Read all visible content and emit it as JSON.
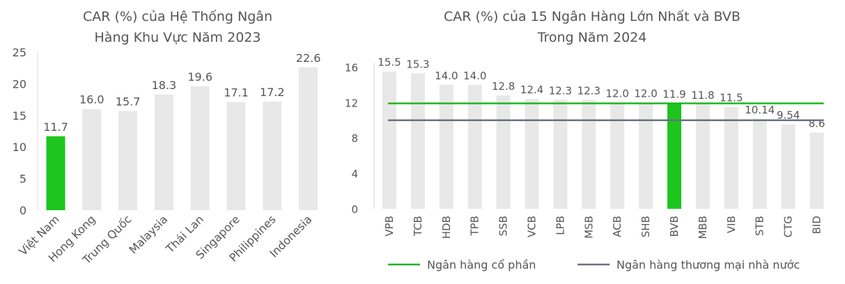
{
  "colors": {
    "bar": "#e8e8e8",
    "highlight": "#1ec51e",
    "axis": "#d9d9d9",
    "text": "#555555",
    "line_private": "#1eb51e",
    "line_state": "#6b6f82"
  },
  "chart_data": [
    {
      "type": "bar",
      "title": "CAR (%) của Hệ Thống Ngân Hàng Khu Vực Năm 2023",
      "title_lines": [
        "CAR (%) của Hệ Thống Ngân",
        "Hàng Khu Vực Năm 2023"
      ],
      "categories": [
        "Việt Nam",
        "Hong Kong",
        "Trung Quốc",
        "Malaysia",
        "Thái Lan",
        "Singapore",
        "Philippines",
        "Indonesia"
      ],
      "values": [
        11.7,
        16.0,
        15.7,
        18.3,
        19.6,
        17.1,
        17.2,
        22.6
      ],
      "value_labels": [
        "11.7",
        "16.0",
        "15.7",
        "18.3",
        "19.6",
        "17.1",
        "17.2",
        "22.6"
      ],
      "highlight": "Việt Nam",
      "ylim": [
        0,
        25
      ],
      "yticks": [
        0,
        5,
        10,
        15,
        20,
        25
      ],
      "grid": false
    },
    {
      "type": "bar",
      "title": "CAR (%) của 15 Ngân Hàng Lớn Nhất và BVB Trong Năm 2024",
      "title_lines": [
        "CAR (%) của 15 Ngân Hàng Lớn Nhất và BVB",
        "Trong Năm 2024"
      ],
      "categories": [
        "VPB",
        "TCB",
        "HDB",
        "TPB",
        "SSB",
        "VCB",
        "LPB",
        "MSB",
        "ACB",
        "SHB",
        "BVB",
        "MBB",
        "VIB",
        "STB",
        "CTG",
        "BID"
      ],
      "values": [
        15.5,
        15.3,
        14.0,
        14.0,
        12.8,
        12.4,
        12.3,
        12.3,
        12.0,
        12.0,
        11.9,
        11.8,
        11.5,
        10.14,
        9.54,
        8.6
      ],
      "value_labels": [
        "15.5",
        "15.3",
        "14.0",
        "14.0",
        "12.8",
        "12.4",
        "12.3",
        "12.3",
        "12.0",
        "12.0",
        "11.9",
        "11.8",
        "11.5",
        "10.14",
        "9.54",
        "8.6"
      ],
      "highlight": "BVB",
      "ylim": [
        0,
        16.5
      ],
      "yticks": [
        0,
        4,
        8,
        12,
        16
      ],
      "grid": false,
      "reference_lines": [
        {
          "name": "Ngân hàng cổ phần",
          "value": 11.9,
          "color": "#1eb51e"
        },
        {
          "name": "Ngân hàng thương mại nhà nước",
          "value": 10.0,
          "color": "#6b6f82"
        }
      ],
      "legend_position": "bottom"
    }
  ]
}
